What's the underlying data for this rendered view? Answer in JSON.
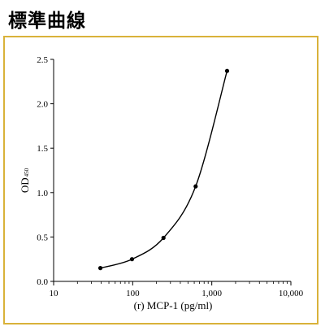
{
  "page_title": "標準曲線",
  "colors": {
    "frame_border": "#d9b23a",
    "series": "#000000"
  },
  "chart_data": {
    "type": "line",
    "title": "",
    "xlabel": "(r) MCP-1 (pg/ml)",
    "ylabel": "OD",
    "ylabel_subscript": "450",
    "x_scale": "log",
    "xlim": [
      10,
      10000
    ],
    "ylim": [
      0,
      2.5
    ],
    "x_ticks": [
      10,
      100,
      1000,
      10000
    ],
    "x_tick_labels": [
      "10",
      "100",
      "1,000",
      "10,000"
    ],
    "y_ticks": [
      0,
      0.5,
      1.0,
      1.5,
      2.0,
      2.5
    ],
    "y_tick_labels": [
      "0.0",
      "0.5",
      "1.0",
      "1.5",
      "2.0",
      "2.5"
    ],
    "grid": false,
    "series": [
      {
        "x": [
          39,
          98,
          245,
          625,
          1560
        ],
        "y": [
          0.15,
          0.25,
          0.49,
          1.07,
          2.37
        ]
      }
    ]
  }
}
